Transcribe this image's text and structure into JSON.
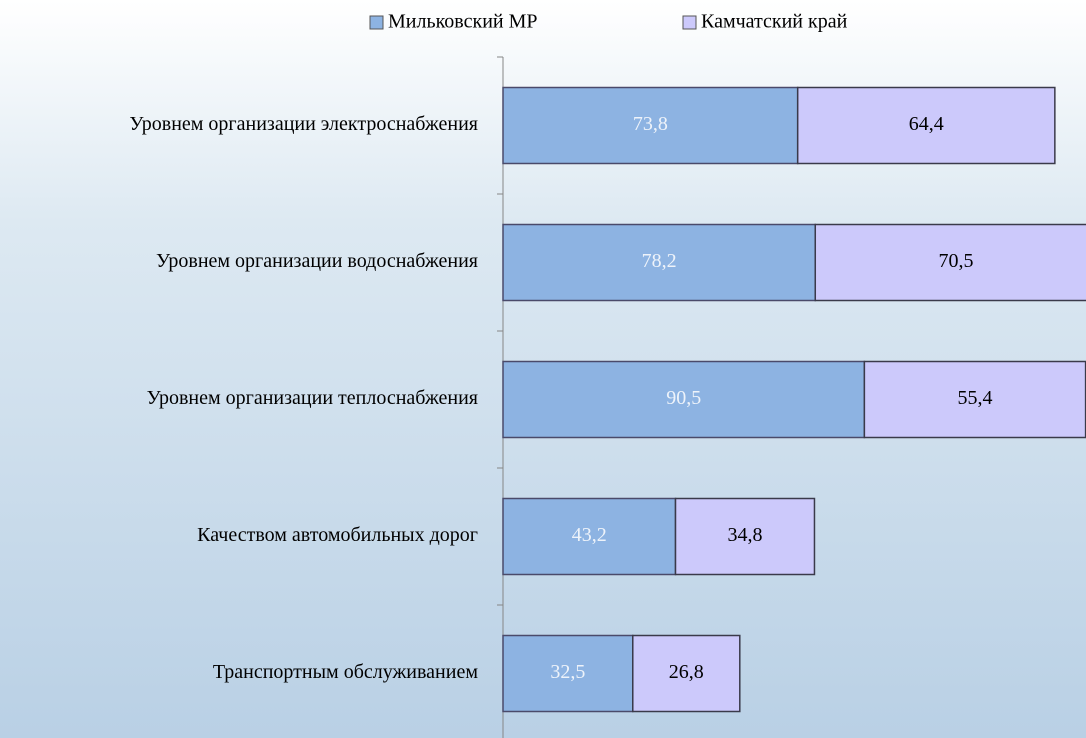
{
  "chart_data": {
    "type": "stacked-bar-horizontal",
    "categories": [
      "Уровнем организации электроснабжения",
      "Уровнем организации водоснабжения",
      "Уровнем организации теплоснабжения",
      "Качеством автомобильных дорог",
      "Транспортным обслуживанием"
    ],
    "series": [
      {
        "name": "Мильковский МР",
        "color": "#8db3e2",
        "label_color": "#eef3fa",
        "values": [
          73.8,
          78.2,
          90.5,
          43.2,
          32.5
        ],
        "value_labels": [
          "73,8",
          "78,2",
          "90,5",
          "43,2",
          "32,5"
        ]
      },
      {
        "name": "Камчатский край",
        "color": "#ccc9fb",
        "label_color": "#000000",
        "values": [
          64.4,
          70.5,
          55.4,
          34.8,
          26.8
        ],
        "value_labels": [
          "64,4",
          "70,5",
          "55,4",
          "34,8",
          "26,8"
        ]
      }
    ],
    "xlim": [
      0,
      146
    ],
    "legend": "top"
  }
}
